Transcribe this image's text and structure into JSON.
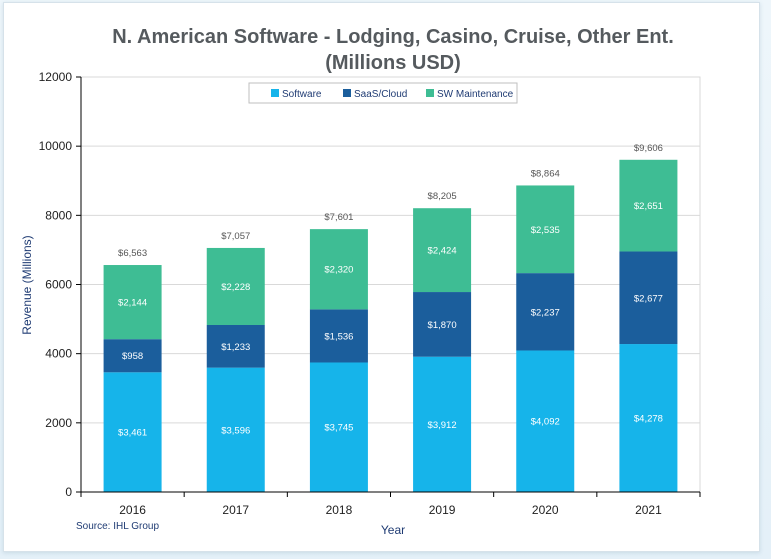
{
  "chart_data": {
    "type": "bar",
    "stacked": true,
    "title_line1": "N. American Software - Lodging, Casino, Cruise, Other Ent.",
    "title_line2": "(Millions USD)",
    "xlabel": "Year",
    "ylabel": "Revenue (Millions)",
    "ylim": [
      0,
      12000
    ],
    "yticks": [
      0,
      2000,
      4000,
      6000,
      8000,
      10000,
      12000
    ],
    "grid": true,
    "legend_position": "top-center",
    "source": "Source: IHL Group",
    "categories": [
      "2016",
      "2017",
      "2018",
      "2019",
      "2020",
      "2021"
    ],
    "series": [
      {
        "name": "Software",
        "color": "#16b4ea",
        "values": [
          3461,
          3596,
          3745,
          3912,
          4092,
          4278
        ],
        "labels": [
          "$3,461",
          "$3,596",
          "$3,745",
          "$3,912",
          "$4,092",
          "$4,278"
        ]
      },
      {
        "name": "SaaS/Cloud",
        "color": "#1b5e9c",
        "values": [
          958,
          1233,
          1536,
          1870,
          2237,
          2677
        ],
        "labels": [
          "$958",
          "$1,233",
          "$1,536",
          "$1,870",
          "$2,237",
          "$2,677"
        ]
      },
      {
        "name": "SW Maintenance",
        "color": "#3ebd94",
        "values": [
          2144,
          2228,
          2320,
          2424,
          2535,
          2651
        ],
        "labels": [
          "$2,144",
          "$2,228",
          "$2,320",
          "$2,424",
          "$2,535",
          "$2,651"
        ]
      }
    ],
    "totals": [
      6563,
      7057,
      7601,
      8205,
      8864,
      9606
    ],
    "total_labels": [
      "$6,563",
      "$7,057",
      "$7,601",
      "$8,205",
      "$8,864",
      "$9,606"
    ]
  }
}
